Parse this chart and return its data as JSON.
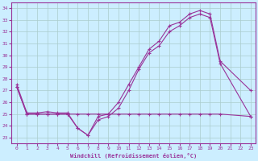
{
  "xlabel": "Windchill (Refroidissement éolien,°C)",
  "background_color": "#cceeff",
  "grid_color": "#aacccc",
  "line_color": "#993399",
  "xlim": [
    -0.5,
    23.5
  ],
  "ylim": [
    22.5,
    34.5
  ],
  "yticks": [
    23,
    24,
    25,
    26,
    27,
    28,
    29,
    30,
    31,
    32,
    33,
    34
  ],
  "xticks": [
    0,
    1,
    2,
    3,
    4,
    5,
    6,
    7,
    8,
    9,
    10,
    11,
    12,
    13,
    14,
    15,
    16,
    17,
    18,
    19,
    20,
    21,
    22,
    23
  ],
  "series1": {
    "x": [
      0,
      1,
      2,
      3,
      4,
      5,
      6,
      7,
      8,
      9,
      10,
      11,
      12,
      13,
      14,
      15,
      16,
      17,
      18,
      19,
      20,
      23
    ],
    "y": [
      27.5,
      25.1,
      25.1,
      25.2,
      25.1,
      25.1,
      23.8,
      23.2,
      24.8,
      25.0,
      26.0,
      27.5,
      29.0,
      30.5,
      31.2,
      32.5,
      32.8,
      33.5,
      33.8,
      33.5,
      29.5,
      27.0
    ]
  },
  "series2": {
    "x": [
      0,
      1,
      2,
      3,
      4,
      5,
      6,
      7,
      8,
      9,
      10,
      11,
      12,
      13,
      14,
      15,
      16,
      17,
      18,
      19,
      20,
      23
    ],
    "y": [
      27.3,
      25.0,
      25.0,
      25.0,
      25.0,
      25.0,
      23.8,
      23.2,
      24.5,
      24.8,
      25.5,
      27.0,
      28.8,
      30.2,
      30.8,
      32.0,
      32.5,
      33.2,
      33.5,
      33.2,
      29.3,
      24.8
    ]
  },
  "series3": {
    "x": [
      0,
      1,
      2,
      3,
      4,
      5,
      6,
      7,
      8,
      9,
      10,
      11,
      12,
      13,
      14,
      15,
      16,
      17,
      18,
      19,
      20,
      23
    ],
    "y": [
      27.3,
      25.0,
      25.0,
      25.0,
      25.0,
      25.0,
      25.0,
      25.0,
      25.0,
      25.0,
      25.0,
      25.0,
      25.0,
      25.0,
      25.0,
      25.0,
      25.0,
      25.0,
      25.0,
      25.0,
      25.0,
      24.8
    ]
  }
}
